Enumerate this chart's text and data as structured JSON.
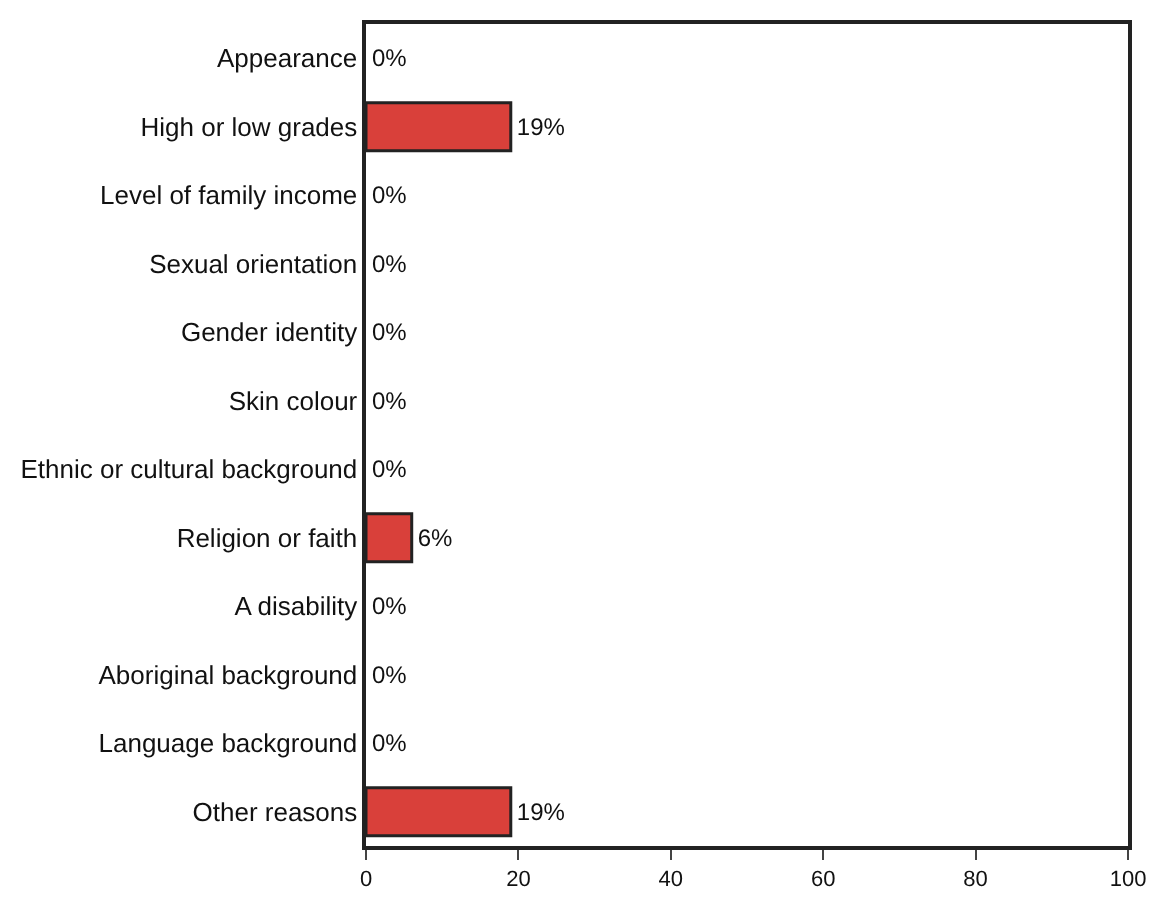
{
  "chart_data": {
    "type": "bar",
    "orientation": "horizontal",
    "categories": [
      "Appearance",
      "High or low grades",
      "Level of family income",
      "Sexual orientation",
      "Gender identity",
      "Skin colour",
      "Ethnic or cultural background",
      "Religion or faith",
      "A disability",
      "Aboriginal background",
      "Language background",
      "Other reasons"
    ],
    "values": [
      0,
      19,
      0,
      0,
      0,
      0,
      0,
      6,
      0,
      0,
      0,
      19
    ],
    "value_labels": [
      "0%",
      "19%",
      "0%",
      "0%",
      "0%",
      "0%",
      "0%",
      "6%",
      "0%",
      "0%",
      "0%",
      "19%"
    ],
    "color": "#d9403a",
    "xlim": [
      0,
      100
    ],
    "xticks": [
      0,
      20,
      40,
      60,
      80,
      100
    ],
    "grid": false,
    "legend": false
  }
}
